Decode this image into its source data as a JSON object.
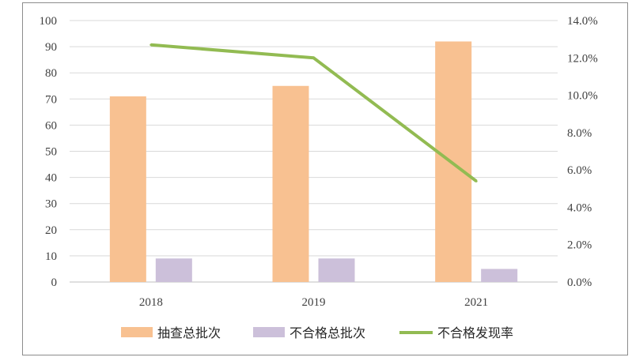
{
  "chart_data": {
    "type": "bar",
    "categories": [
      "2018",
      "2019",
      "2021"
    ],
    "series": [
      {
        "name": "抽查总批次",
        "kind": "bar",
        "axis": "left",
        "color": "#F8C191",
        "values": [
          71,
          75,
          92
        ]
      },
      {
        "name": "不合格总批次",
        "kind": "bar",
        "axis": "left",
        "color": "#CCC0DA",
        "values": [
          9,
          9,
          5
        ]
      },
      {
        "name": "不合格发现率",
        "kind": "line",
        "axis": "right",
        "color": "#92BB52",
        "values": [
          12.7,
          12.0,
          5.4
        ]
      }
    ],
    "ylim": [
      0,
      100
    ],
    "y_ticks": [
      "0",
      "10",
      "20",
      "30",
      "40",
      "50",
      "60",
      "70",
      "80",
      "90",
      "100"
    ],
    "y2lim": [
      0,
      14
    ],
    "y2_ticks": [
      "0.0%",
      "2.0%",
      "4.0%",
      "6.0%",
      "8.0%",
      "10.0%",
      "12.0%",
      "14.0%"
    ],
    "grid": true,
    "legend": "bottom"
  }
}
